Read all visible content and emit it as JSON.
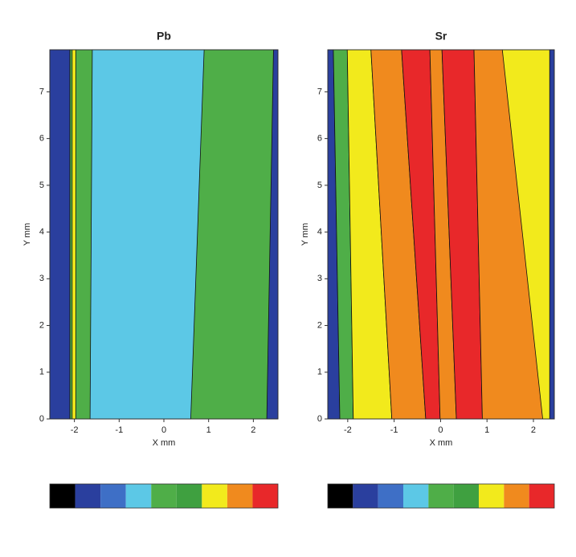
{
  "chart_data": [
    {
      "type": "contour",
      "title": "Pb",
      "x_label": "X mm",
      "y_label": "Y mm",
      "xlim": [
        -2.55,
        2.55
      ],
      "ylim": [
        0,
        7.9
      ],
      "xticks": [
        -2,
        -1,
        0,
        1,
        2
      ],
      "yticks": [
        0,
        1,
        2,
        3,
        4,
        5,
        6,
        7
      ],
      "bands": [
        {
          "color": "#2a3f9e",
          "x_bottom": [
            -2.55,
            -2.1
          ],
          "x_top": [
            -2.55,
            -2.1
          ]
        },
        {
          "color": "#4fae48",
          "x_bottom": [
            -2.1,
            2.55
          ],
          "x_top": [
            -2.1,
            2.55
          ]
        },
        {
          "color": "#5cc8e6",
          "x_bottom": [
            -1.65,
            0.6
          ],
          "x_top": [
            -1.6,
            0.9
          ]
        },
        {
          "color": "#f2ea1c",
          "x_bottom": [
            -2.05,
            -1.97
          ],
          "x_top": [
            -2.05,
            -1.97
          ]
        },
        {
          "color": "#2a3f9e",
          "x_bottom": [
            2.3,
            2.55
          ],
          "x_top": [
            2.45,
            2.55
          ]
        }
      ],
      "colorbar": [
        "#000000",
        "#2a3f9e",
        "#3e6fc6",
        "#5cc8e6",
        "#4fae48",
        "#3fa040",
        "#f2ea1c",
        "#f08a1e",
        "#e8282a"
      ]
    },
    {
      "type": "contour",
      "title": "Sr",
      "x_label": "X mm",
      "y_label": "Y mm",
      "xlim": [
        -2.43,
        2.45
      ],
      "ylim": [
        0,
        7.9
      ],
      "xticks": [
        -2,
        -1,
        0,
        1,
        2
      ],
      "yticks": [
        0,
        1,
        2,
        3,
        4,
        5,
        6,
        7
      ],
      "bands": [
        {
          "color": "#2a3f9e",
          "x_bottom": [
            -2.43,
            -2.17
          ],
          "x_top": [
            -2.43,
            -2.31
          ]
        },
        {
          "color": "#4fae48",
          "x_bottom": [
            -2.17,
            -1.88
          ],
          "x_top": [
            -2.31,
            -2.01
          ]
        },
        {
          "color": "#f2ea1c",
          "x_bottom": [
            -1.88,
            -1.05
          ],
          "x_top": [
            -2.01,
            -1.5
          ]
        },
        {
          "color": "#f08a1e",
          "x_bottom": [
            -1.05,
            -0.32
          ],
          "x_top": [
            -1.5,
            -0.84
          ]
        },
        {
          "color": "#e8282a",
          "x_bottom": [
            -0.32,
            -0.01
          ],
          "x_top": [
            -0.84,
            -0.23
          ]
        },
        {
          "color": "#f08a1e",
          "x_bottom": [
            -0.01,
            0.34
          ],
          "x_top": [
            -0.23,
            0.03
          ]
        },
        {
          "color": "#e8282a",
          "x_bottom": [
            0.34,
            0.9
          ],
          "x_top": [
            0.03,
            0.72
          ]
        },
        {
          "color": "#f08a1e",
          "x_bottom": [
            0.9,
            2.45
          ],
          "x_top": [
            0.72,
            1.33
          ]
        },
        {
          "color": "#f2ea1c",
          "x_bottom": [
            2.2,
            2.45
          ],
          "x_top": [
            1.33,
            2.45
          ]
        },
        {
          "color": "#2a3f9e",
          "x_bottom": [
            2.35,
            2.45
          ],
          "x_top": [
            2.35,
            2.45
          ]
        }
      ],
      "colorbar": [
        "#000000",
        "#2a3f9e",
        "#3e6fc6",
        "#5cc8e6",
        "#4fae48",
        "#3fa040",
        "#f2ea1c",
        "#f08a1e",
        "#e8282a"
      ]
    }
  ]
}
